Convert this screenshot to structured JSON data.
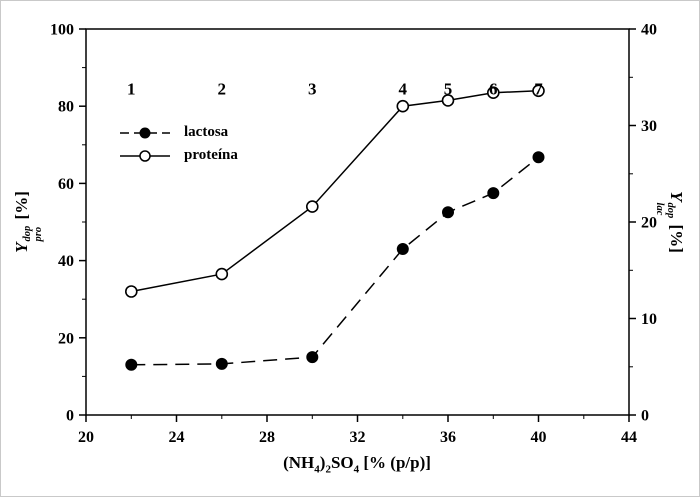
{
  "chart_data": {
    "type": "line",
    "title": "",
    "xlabel_plain": "(NH4)2SO4 [% (p/p)]",
    "ylabel_left_plain": "Y dop pro [%]",
    "ylabel_right_plain": "Y dop lac [%]",
    "xlim": [
      20,
      44
    ],
    "xticks": [
      20,
      24,
      28,
      32,
      36,
      40,
      44
    ],
    "x_minor_step": 2,
    "ylim_left": [
      0,
      100
    ],
    "yticks_left": [
      0,
      20,
      40,
      60,
      80,
      100
    ],
    "y_left_minor_step": 10,
    "ylim_right": [
      0,
      40
    ],
    "yticks_right": [
      0,
      10,
      20,
      30,
      40
    ],
    "y_right_minor_step": 5,
    "grid": false,
    "legend_position": "upper-left-inside",
    "x": [
      22,
      26,
      30,
      34,
      36,
      38,
      40
    ],
    "point_labels": [
      "1",
      "2",
      "3",
      "4",
      "5",
      "6",
      "7"
    ],
    "point_label_y_left": 83,
    "series": [
      {
        "name": "lactosa",
        "axis": "right",
        "marker": "filled-circle",
        "line_style": "dashed",
        "values": [
          5.2,
          5.3,
          6.0,
          17.2,
          21.0,
          23.0,
          26.7
        ]
      },
      {
        "name": "proteína",
        "axis": "left",
        "marker": "open-circle",
        "line_style": "solid",
        "values": [
          32,
          36.5,
          54,
          80,
          81.5,
          83.5,
          84
        ]
      }
    ],
    "colors": {
      "line": "#000000",
      "background": "#ffffff"
    }
  },
  "axis_labels": {
    "x": {
      "p1": "(NH",
      "s1": "4",
      "p2": ")",
      "s2": "2",
      "p3": "SO",
      "s3": "4",
      "unit": " [% (p/p)]"
    },
    "left": {
      "base": "Y",
      "sup": "dop",
      "sub": "pro",
      "unit": " [%]"
    },
    "right": {
      "base": "Y",
      "sup": "dop",
      "sub": "lac",
      "unit": " [%]"
    }
  }
}
